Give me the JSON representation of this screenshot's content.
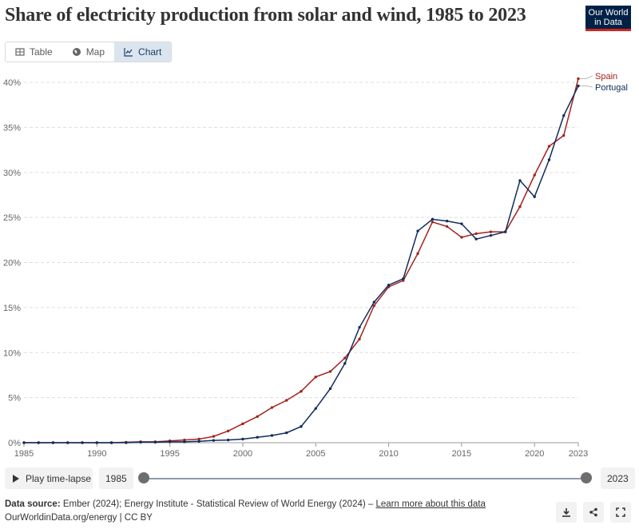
{
  "header": {
    "title": "Share of electricity production from solar and wind, 1985 to 2023",
    "logo_line1": "Our World",
    "logo_line2": "in Data"
  },
  "tabs": [
    {
      "label": "Table",
      "icon": "table-icon"
    },
    {
      "label": "Map",
      "icon": "globe-icon"
    },
    {
      "label": "Chart",
      "icon": "line-chart-icon",
      "active": true
    }
  ],
  "chart_data": {
    "type": "line",
    "title": "Share of electricity production from solar and wind, 1985 to 2023",
    "xlim": [
      1985,
      2023
    ],
    "ylim": [
      0,
      40
    ],
    "x_ticks": [
      1985,
      1990,
      1995,
      2000,
      2005,
      2010,
      2015,
      2020,
      2023
    ],
    "y_ticks": [
      0,
      5,
      10,
      15,
      20,
      25,
      30,
      35,
      40
    ],
    "y_tick_labels": [
      "0%",
      "5%",
      "10%",
      "15%",
      "20%",
      "25%",
      "30%",
      "35%",
      "40%"
    ],
    "grid": "horizontal dashed",
    "legend": "right, end labels",
    "series": [
      {
        "name": "Spain",
        "color": "#a2231d",
        "x": [
          1985,
          1986,
          1987,
          1988,
          1989,
          1990,
          1991,
          1992,
          1993,
          1994,
          1995,
          1996,
          1997,
          1998,
          1999,
          2000,
          2001,
          2002,
          2003,
          2004,
          2005,
          2006,
          2007,
          2008,
          2009,
          2010,
          2011,
          2012,
          2013,
          2014,
          2015,
          2016,
          2017,
          2018,
          2019,
          2020,
          2021,
          2022,
          2023
        ],
        "values": [
          0,
          0,
          0,
          0,
          0,
          0,
          0,
          0.05,
          0.1,
          0.1,
          0.2,
          0.3,
          0.4,
          0.7,
          1.3,
          2.1,
          2.9,
          3.9,
          4.7,
          5.7,
          7.3,
          7.9,
          9.4,
          11.5,
          15.2,
          17.3,
          18.0,
          21.0,
          24.5,
          24.0,
          22.8,
          23.2,
          23.4,
          23.4,
          26.2,
          29.7,
          32.9,
          34.1,
          40.4
        ]
      },
      {
        "name": "Portugal",
        "color": "#102d5e",
        "x": [
          1985,
          1986,
          1987,
          1988,
          1989,
          1990,
          1991,
          1992,
          1993,
          1994,
          1995,
          1996,
          1997,
          1998,
          1999,
          2000,
          2001,
          2002,
          2003,
          2004,
          2005,
          2006,
          2007,
          2008,
          2009,
          2010,
          2011,
          2012,
          2013,
          2014,
          2015,
          2016,
          2017,
          2018,
          2019,
          2020,
          2021,
          2022,
          2023
        ],
        "values": [
          0,
          0,
          0,
          0,
          0,
          0,
          0,
          0,
          0.05,
          0.05,
          0.1,
          0.1,
          0.15,
          0.25,
          0.3,
          0.4,
          0.6,
          0.8,
          1.1,
          1.8,
          3.8,
          6.0,
          8.8,
          12.8,
          15.6,
          17.5,
          18.2,
          23.5,
          24.8,
          24.6,
          24.3,
          22.6,
          23.0,
          23.4,
          29.1,
          27.3,
          31.4,
          36.3,
          39.6
        ]
      }
    ]
  },
  "controls": {
    "play_label": "Play time-lapse",
    "start_year": "1985",
    "end_year": "2023"
  },
  "footer": {
    "source_label": "Data source:",
    "source_text": "Ember (2024); Energy Institute - Statistical Review of World Energy (2024) –",
    "learn_more": "Learn more about this data",
    "url": "OurWorldinData.org/energy | CC BY"
  }
}
